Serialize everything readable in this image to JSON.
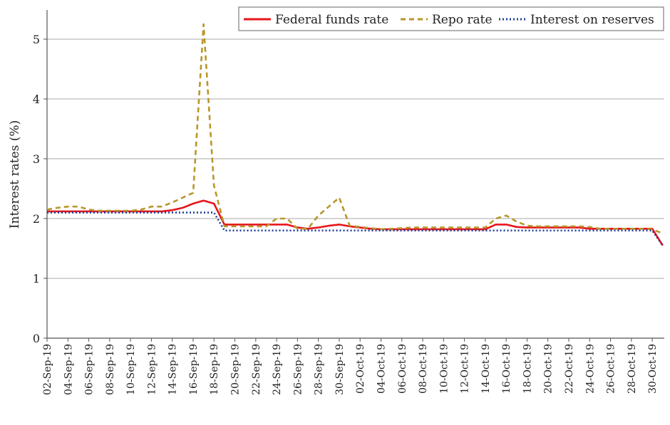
{
  "chart_data": {
    "type": "line",
    "title": "",
    "xlabel": "",
    "ylabel": "Interest rates (%)",
    "ylim": [
      0,
      5.5
    ],
    "yticks": [
      "0",
      "1",
      "2",
      "3",
      "4",
      "5"
    ],
    "grid": true,
    "legend_position": "top-right",
    "start_date": "2019-09-02",
    "xtick_labels": [
      "02-Sep-19",
      "04-Sep-19",
      "06-Sep-19",
      "08-Sep-19",
      "10-Sep-19",
      "12-Sep-19",
      "14-Sep-19",
      "16-Sep-19",
      "18-Sep-19",
      "20-Sep-19",
      "22-Sep-19",
      "24-Sep-19",
      "26-Sep-19",
      "28-Sep-19",
      "30-Sep-19",
      "02-Oct-19",
      "04-Oct-19",
      "06-Oct-19",
      "08-Oct-19",
      "10-Oct-19",
      "12-Oct-19",
      "14-Oct-19",
      "16-Oct-19",
      "18-Oct-19",
      "20-Oct-19",
      "22-Oct-19",
      "24-Oct-19",
      "26-Oct-19",
      "28-Oct-19",
      "30-Oct-19"
    ],
    "series": [
      {
        "name": "Federal funds rate",
        "color": "#e8141b",
        "style": "solid",
        "values": [
          2.12,
          2.12,
          2.12,
          2.12,
          2.12,
          2.12,
          2.12,
          2.12,
          2.12,
          2.12,
          2.12,
          2.12,
          2.14,
          2.18,
          2.25,
          2.3,
          2.25,
          1.9,
          1.9,
          1.9,
          1.9,
          1.9,
          1.9,
          1.9,
          1.85,
          1.83,
          1.85,
          1.88,
          1.9,
          1.87,
          1.85,
          1.83,
          1.82,
          1.82,
          1.82,
          1.82,
          1.82,
          1.82,
          1.82,
          1.82,
          1.82,
          1.82,
          1.82,
          1.9,
          1.9,
          1.86,
          1.85,
          1.85,
          1.85,
          1.85,
          1.85,
          1.85,
          1.83,
          1.83,
          1.83,
          1.83,
          1.83,
          1.83,
          1.83,
          1.55
        ]
      },
      {
        "name": "Repo rate",
        "color": "#b8962a",
        "style": "dashed",
        "values": [
          2.15,
          2.18,
          2.2,
          2.2,
          2.15,
          2.13,
          2.13,
          2.13,
          2.13,
          2.15,
          2.2,
          2.2,
          2.27,
          2.35,
          2.43,
          5.25,
          2.55,
          1.87,
          1.87,
          1.87,
          1.87,
          1.87,
          2.0,
          2.0,
          1.83,
          1.83,
          2.05,
          2.2,
          2.35,
          1.88,
          1.86,
          1.84,
          1.82,
          1.83,
          1.84,
          1.85,
          1.85,
          1.85,
          1.85,
          1.85,
          1.85,
          1.85,
          1.85,
          2.0,
          2.05,
          1.95,
          1.88,
          1.87,
          1.87,
          1.87,
          1.87,
          1.87,
          1.86,
          1.83,
          1.83,
          1.83,
          1.83,
          1.83,
          1.82,
          1.75
        ]
      },
      {
        "name": "Interest on reserves",
        "color": "#1f3f9a",
        "style": "dotted",
        "values": [
          2.1,
          2.1,
          2.1,
          2.1,
          2.1,
          2.1,
          2.1,
          2.1,
          2.1,
          2.1,
          2.1,
          2.1,
          2.1,
          2.1,
          2.1,
          2.1,
          2.1,
          1.8,
          1.8,
          1.8,
          1.8,
          1.8,
          1.8,
          1.8,
          1.8,
          1.8,
          1.8,
          1.8,
          1.8,
          1.8,
          1.8,
          1.8,
          1.8,
          1.8,
          1.8,
          1.8,
          1.8,
          1.8,
          1.8,
          1.8,
          1.8,
          1.8,
          1.8,
          1.8,
          1.8,
          1.8,
          1.8,
          1.8,
          1.8,
          1.8,
          1.8,
          1.8,
          1.8,
          1.8,
          1.8,
          1.8,
          1.8,
          1.8,
          1.8,
          1.55
        ]
      }
    ]
  }
}
